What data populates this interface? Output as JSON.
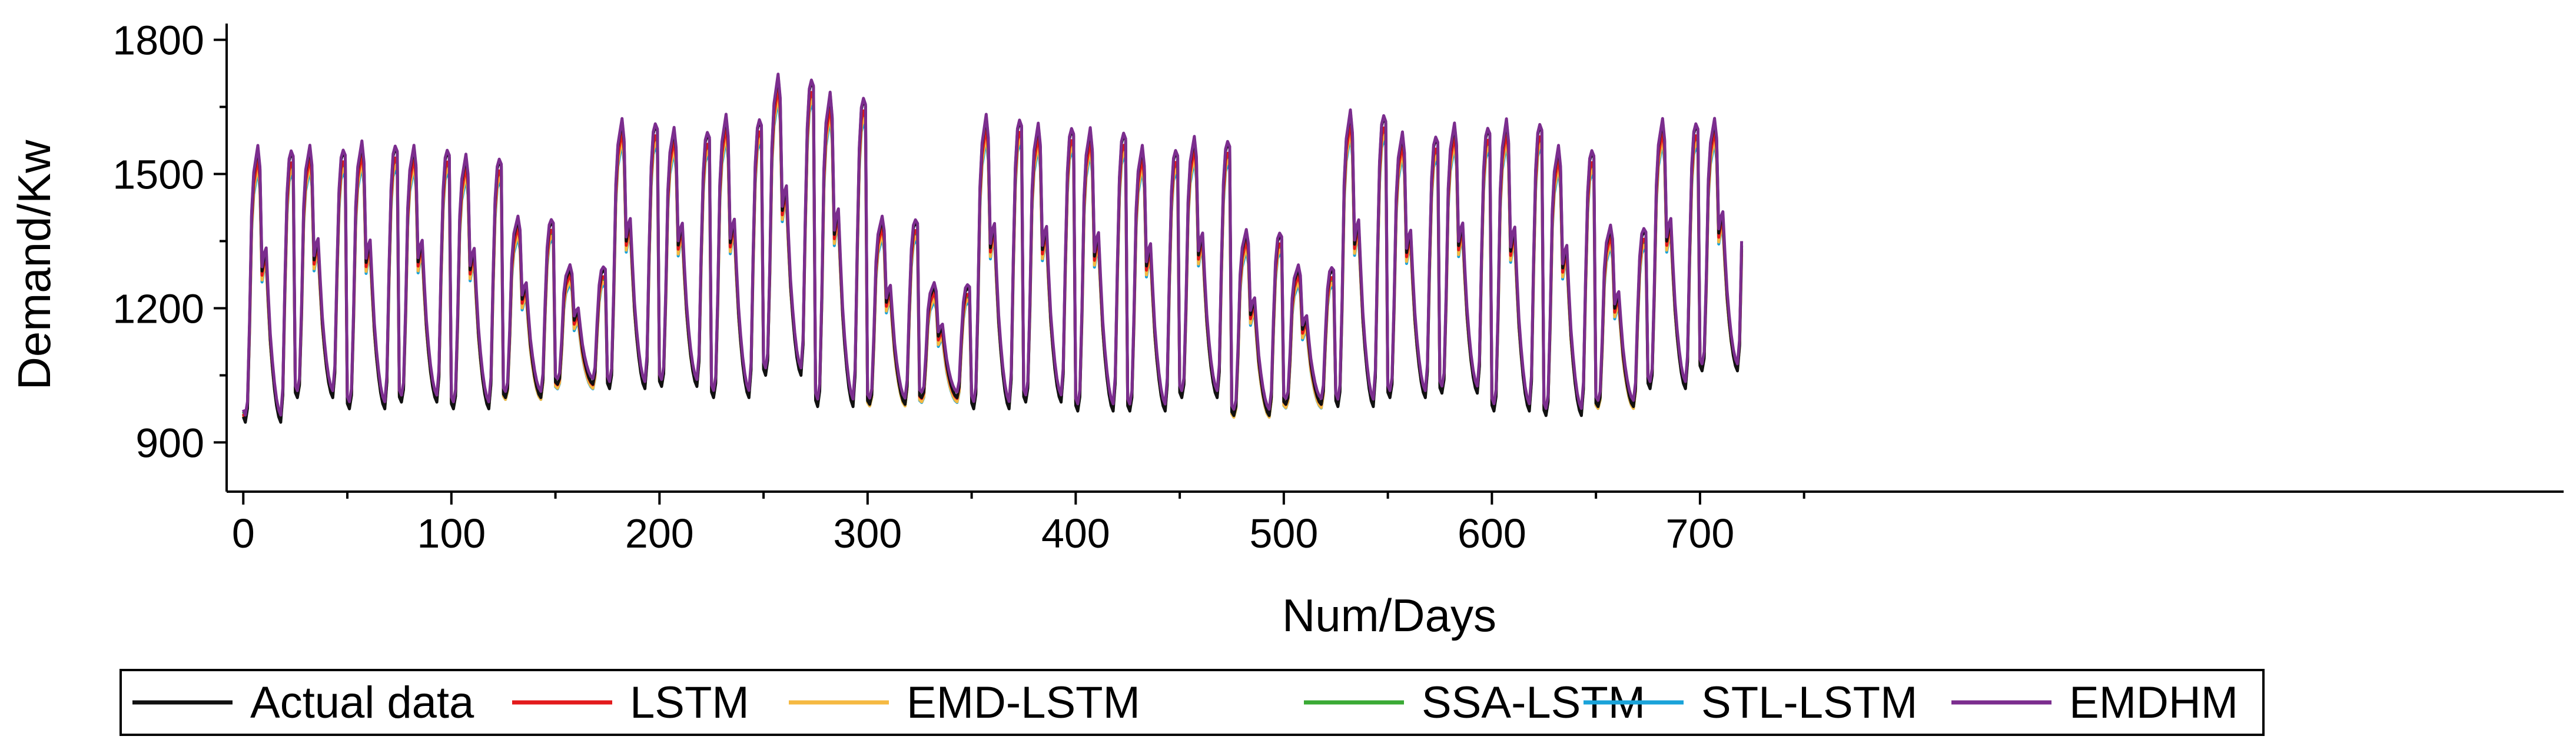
{
  "chart_data": {
    "type": "line",
    "xlabel": "Num/Days",
    "ylabel": "Demand/Kw",
    "xlim": [
      -8,
      1115
    ],
    "ylim": [
      790,
      1810
    ],
    "x_ticks": [
      0,
      100,
      200,
      300,
      400,
      500,
      600,
      700
    ],
    "y_ticks": [
      900,
      1200,
      1500,
      1800
    ],
    "grid": false,
    "legend_position": "bottom",
    "points_per_cycle": 25,
    "cycle_shape": [
      0.02,
      0.0,
      0.05,
      0.35,
      0.75,
      0.9,
      0.95,
      1.0,
      0.92,
      0.55,
      0.6,
      0.62,
      0.45,
      0.3,
      0.2,
      0.12,
      0.06,
      0.02,
      0.0,
      0.1,
      0.5,
      0.82,
      0.95,
      0.98,
      0.96
    ],
    "cycles": {
      "actual_low": [
        945,
        1000,
        975,
        990,
        975,
        1000,
        1030,
        1020,
        1025,
        1000,
        1050,
        980,
        985,
        1000,
        975,
        990,
        970,
        970,
        1000,
        960,
        985,
        980,
        1000,
        1010,
        970,
        960,
        980,
        1020,
        1060
      ],
      "actual_high": [
        1560,
        1560,
        1570,
        1560,
        1540,
        1400,
        1290,
        1620,
        1600,
        1630,
        1720,
        1680,
        1400,
        1250,
        1630,
        1610,
        1600,
        1560,
        1580,
        1370,
        1290,
        1640,
        1590,
        1610,
        1620,
        1560,
        1380,
        1620,
        1620
      ]
    },
    "series": [
      {
        "name": "Actual data",
        "color": "#111111",
        "scale": 1.0,
        "offset": 0
      },
      {
        "name": "LSTM",
        "color": "#e31a1c",
        "scale": 0.95,
        "offset": -8
      },
      {
        "name": "EMD-LSTM",
        "color": "#f5b942",
        "scale": 0.93,
        "offset": -18
      },
      {
        "name": "SSA-LSTM",
        "color": "#3aaa35",
        "scale": 0.92,
        "offset": -12
      },
      {
        "name": "STL-LSTM",
        "color": "#1aa3d9",
        "scale": 0.91,
        "offset": -22
      },
      {
        "name": "EMDHM",
        "color": "#7b2d8e",
        "scale": 0.98,
        "offset": 10
      }
    ]
  }
}
